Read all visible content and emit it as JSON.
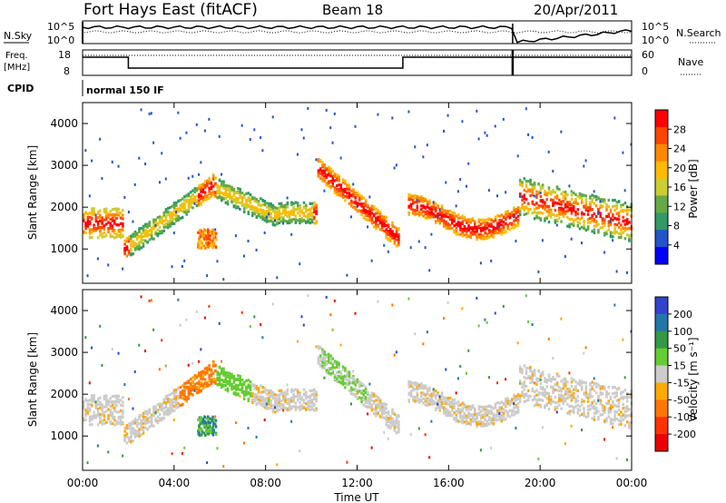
{
  "header": {
    "station": "Fort Hays East (fitACF)",
    "beam": "Beam 18",
    "date": "20/Apr/2011"
  },
  "noise_panel": {
    "left_label": "N.Sky",
    "right_label": "N.Search",
    "y_tick_top": "10^5",
    "y_tick_bottom": "10^0"
  },
  "freq_panel": {
    "left_label_line1": "Freq.",
    "left_label_line2": "[MHz]",
    "left_ticks": [
      "18",
      "8"
    ],
    "right_label": "Nave",
    "right_ticks": [
      "60",
      "0"
    ]
  },
  "cpid": {
    "label": "CPID",
    "value": "normal 150 IF"
  },
  "x_axis": {
    "title": "Time UT",
    "ticks": [
      "00:00",
      "04:00",
      "08:00",
      "12:00",
      "16:00",
      "20:00",
      "00:00"
    ]
  },
  "power_panel": {
    "ylabel": "Slant Range [km]",
    "yticks": [
      "4000",
      "3000",
      "2000",
      "1000"
    ],
    "colorbar_label": "Power [dB]",
    "colorbar_ticks": [
      "28",
      "24",
      "20",
      "16",
      "12",
      "8",
      "4"
    ],
    "colors": [
      "#ff0000",
      "#ff4400",
      "#ff8800",
      "#ffbb00",
      "#cccc33",
      "#66aa44",
      "#339966",
      "#2255cc",
      "#0000ff"
    ]
  },
  "velocity_panel": {
    "ylabel": "Slant Range [km]",
    "yticks": [
      "4000",
      "3000",
      "2000",
      "1000"
    ],
    "colorbar_label": "Velocity [m s⁻¹]",
    "colorbar_ticks": [
      "200",
      "100",
      "50",
      "15",
      "-15",
      "-50",
      "-100",
      "-200"
    ],
    "colors": [
      "#3344cc",
      "#2277aa",
      "#339944",
      "#66cc33",
      "#cccccc",
      "#ffaa00",
      "#ff7700",
      "#ff3300",
      "#ee0000"
    ]
  },
  "chart_data": [
    {
      "type": "heatmap",
      "title": "Power [dB]",
      "xlabel": "Time UT",
      "ylabel": "Slant Range [km]",
      "xlim": [
        0,
        24
      ],
      "ylim": [
        180,
        4500
      ],
      "colorbar_range": [
        0,
        30
      ],
      "echo_bands": [
        {
          "t_start": 0.0,
          "t_end": 1.8,
          "range_center_km": 1700,
          "power_db": 24
        },
        {
          "t_start": 2.0,
          "t_end": 5.7,
          "range_center_km": 1800,
          "power_db": 14
        },
        {
          "t_start": 5.0,
          "t_end": 5.8,
          "range_center_km": 1250,
          "power_db": 24
        },
        {
          "t_start": 10.2,
          "t_end": 13.5,
          "range_center_km": 2000,
          "power_db": 20
        },
        {
          "t_start": 14.2,
          "t_end": 16.0,
          "range_center_km": 1900,
          "power_db": 18
        },
        {
          "t_start": 19.0,
          "t_end": 24.0,
          "range_center_km": 2000,
          "power_db": 22
        }
      ]
    },
    {
      "type": "heatmap",
      "title": "Velocity [m s-1]",
      "xlabel": "Time UT",
      "ylabel": "Slant Range [km]",
      "xlim": [
        0,
        24
      ],
      "ylim": [
        180,
        4500
      ],
      "colorbar_range": [
        -200,
        200
      ]
    }
  ]
}
